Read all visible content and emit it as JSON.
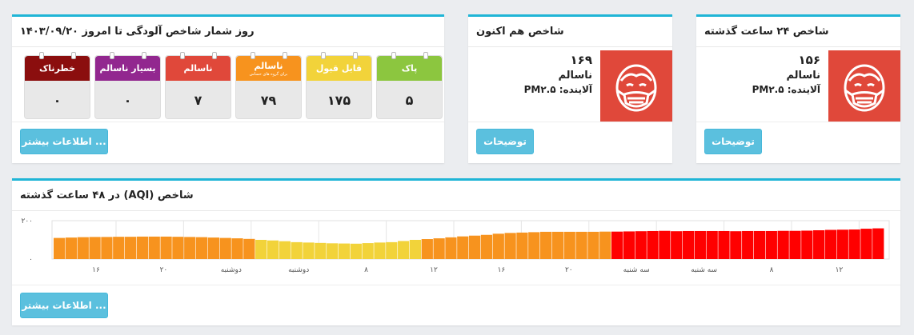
{
  "past24": {
    "title": "شاخص ۲۴ ساعت گذشته",
    "value": "۱۵۶",
    "level": "ناسالم",
    "pollutant": "آلاینده: PM۲.۵",
    "button": "توضیحات",
    "icon": "mask-face-icon",
    "color": "#e0483a"
  },
  "now": {
    "title": "شاخص هم اکنون",
    "value": "۱۶۹",
    "level": "ناسالم",
    "pollutant": "آلاینده: PM۲.۵",
    "button": "توضیحات",
    "icon": "mask-face-icon",
    "color": "#e0483a"
  },
  "days": {
    "title": "روز شمار شاخص آلودگی تا امروز ۱۴۰۳/۰۹/۲۰",
    "button": "اطلاعات بیشتر ...",
    "tiles": [
      {
        "label": "پاک",
        "sub": "",
        "count": "۵",
        "color": "#8cc63f"
      },
      {
        "label": "قابل قبول",
        "sub": "",
        "count": "۱۷۵",
        "color": "#f2d33a"
      },
      {
        "label": "ناسالم",
        "sub": "برای گروه های حساس",
        "count": "۷۹",
        "color": "#f7931e"
      },
      {
        "label": "ناسالم",
        "sub": "",
        "count": "۷",
        "color": "#e0483a"
      },
      {
        "label": "بسیار ناسالم",
        "sub": "",
        "count": "۰",
        "color": "#92278f"
      },
      {
        "label": "خطرناک",
        "sub": "",
        "count": "۰",
        "color": "#8b0e0e"
      }
    ]
  },
  "hist": {
    "title": "شاخص (AQI) در ۴۸ ساعت گذشته",
    "button": "اطلاعات بیشتر ...",
    "chart_data": {
      "type": "bar",
      "title": "شاخص (AQI) در ۴۸ ساعت گذشته",
      "ylim": [
        0,
        200
      ],
      "yticks": [
        "۰",
        "۲۰۰"
      ],
      "xticks": [
        "۱۶",
        "۲۰",
        "دوشنبه",
        "دوشنبه",
        "۸",
        "۱۲",
        "۱۶",
        "۲۰",
        "سه شنبه",
        "سه شنبه",
        "۸",
        "۱۲"
      ],
      "grid": true,
      "values": [
        110,
        112,
        114,
        115,
        115,
        116,
        116,
        117,
        117,
        117,
        116,
        115,
        114,
        112,
        110,
        108,
        105,
        100,
        97,
        93,
        88,
        86,
        84,
        82,
        81,
        80,
        83,
        86,
        88,
        94,
        100,
        104,
        108,
        113,
        118,
        122,
        126,
        132,
        136,
        138,
        140,
        142,
        142,
        142,
        142,
        142,
        143,
        143,
        144,
        145,
        146,
        147,
        145,
        146,
        146,
        146,
        146,
        145,
        146,
        146,
        146,
        147,
        147,
        148,
        150,
        152,
        153,
        154,
        158,
        160
      ],
      "colors": {
        "moderate": "#f2d33a",
        "usg": "#f7931e",
        "unhealthy": "#ff0000"
      }
    }
  }
}
